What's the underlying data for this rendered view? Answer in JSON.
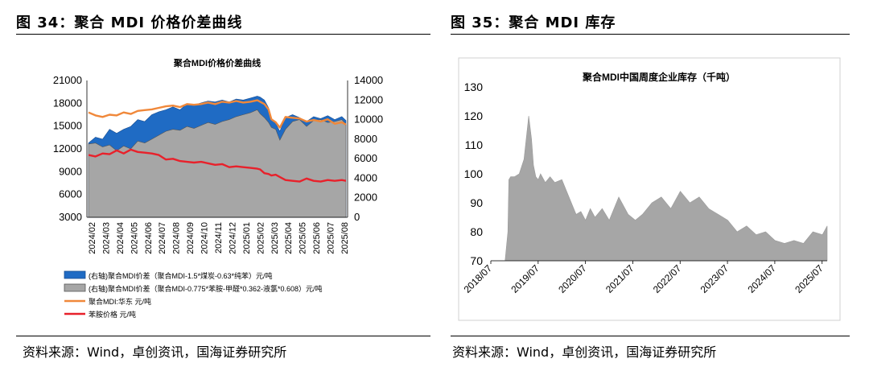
{
  "figures": {
    "left_title": "图 34：聚合 MDI 价格价差曲线",
    "right_title": "图 35：聚合 MDI 库存",
    "left_source": "资料来源：Wind，卓创资讯，国海证券研究所",
    "right_source": "资料来源：Wind，卓创资讯，国海证券研究所"
  },
  "chart_data": [
    {
      "type": "area",
      "title": "聚合MDI价格价差曲线",
      "x_tick_labels": [
        "2024/02",
        "2024/03",
        "2024/04",
        "2024/05",
        "2024/06",
        "2024/07",
        "2024/08",
        "2024/09",
        "2024/10",
        "2024/11",
        "2024/12",
        "2025/01",
        "2025/02",
        "2025/03",
        "2025/04",
        "2025/05",
        "2025/06",
        "2025/07",
        "2025/08"
      ],
      "yleft_ticks": [
        "21000",
        "18000",
        "15000",
        "12000",
        "9000",
        "6000",
        "3000"
      ],
      "yright_ticks": [
        "14000",
        "12000",
        "10000",
        "8000",
        "6000",
        "4000",
        "2000",
        "0"
      ],
      "ylim_left": [
        3000,
        21000
      ],
      "ylim_right": [
        0,
        14000
      ],
      "x": [
        0,
        0.5,
        1,
        1.5,
        2,
        2.5,
        3,
        3.5,
        4,
        4.5,
        5,
        5.5,
        6,
        6.5,
        7,
        7.5,
        8,
        8.5,
        9,
        9.5,
        10,
        10.5,
        11,
        11.5,
        12,
        12.2,
        12.5,
        12.8,
        13,
        13.3,
        13.6,
        14,
        14.5,
        15,
        15.5,
        16,
        16.5,
        17,
        17.5,
        18,
        18.3
      ],
      "series": [
        {
          "name": "(右轴)聚合MDI价差（聚合MDI-1.5*煤炭-0.63*纯苯）元/吨",
          "axis": "right",
          "color": "#1f6bc4",
          "values": [
            7600,
            8200,
            8000,
            9000,
            8600,
            9000,
            9300,
            10000,
            9800,
            10500,
            10800,
            11000,
            11300,
            11000,
            11600,
            11500,
            11700,
            11900,
            11800,
            12000,
            11800,
            12100,
            12000,
            12200,
            12400,
            12300,
            12000,
            11200,
            10000,
            9600,
            8800,
            10200,
            10500,
            10200,
            9800,
            10300,
            10100,
            10400,
            10000,
            10300,
            9900
          ]
        },
        {
          "name": "(右轴)聚合MDI价差（聚合MDI-0.775*苯胺-甲醛*0.362-液氯*0.608）元/吨",
          "axis": "right",
          "color": "#a6a6a6",
          "values": [
            7500,
            7600,
            7200,
            7400,
            6800,
            7300,
            7000,
            7800,
            7600,
            8000,
            8400,
            8800,
            9000,
            8900,
            9300,
            9100,
            9400,
            9700,
            9500,
            9800,
            10000,
            10300,
            10500,
            10700,
            11000,
            10600,
            10200,
            9700,
            9200,
            9000,
            7900,
            9000,
            9800,
            10000,
            9300,
            9900,
            10000,
            9700,
            9800,
            10000,
            9500
          ]
        },
        {
          "name": "聚合MDI:华东 元/吨",
          "axis": "left",
          "color": "#f0883a",
          "values": [
            16800,
            16400,
            16200,
            16500,
            16400,
            16800,
            16600,
            17000,
            17100,
            17200,
            17400,
            17600,
            17700,
            17500,
            17900,
            17800,
            17900,
            18100,
            17900,
            18200,
            18100,
            18300,
            18100,
            18200,
            18400,
            18200,
            17900,
            17200,
            15900,
            15500,
            14800,
            16200,
            16100,
            16000,
            15600,
            15800,
            15600,
            15900,
            15300,
            15500,
            15200
          ]
        },
        {
          "name": "苯胺价格 元/吨",
          "axis": "left",
          "color": "#e8212b",
          "values": [
            11200,
            11000,
            11400,
            11300,
            11800,
            11400,
            11900,
            11600,
            11500,
            11400,
            11200,
            10600,
            10700,
            10400,
            10300,
            10200,
            10300,
            10100,
            9900,
            10000,
            9600,
            9700,
            9600,
            9500,
            9400,
            9300,
            8800,
            8700,
            8500,
            8600,
            8300,
            7900,
            7800,
            7700,
            8100,
            7800,
            7700,
            7900,
            7800,
            7900,
            7800
          ]
        }
      ],
      "legend_placement": "bottom"
    },
    {
      "type": "area",
      "title": "聚合MDI中国周度企业库存（千吨）",
      "x_tick_labels": [
        "2018/07",
        "2019/07",
        "2020/07",
        "2021/07",
        "2022/07",
        "2023/07",
        "2024/07",
        "2025/07"
      ],
      "y_tick_labels": [
        "130",
        "120",
        "110",
        "100",
        "90",
        "80",
        "70"
      ],
      "ylim": [
        70,
        130
      ],
      "color": "#a6a6a6",
      "x": [
        0,
        0.3,
        0.36,
        0.38,
        0.42,
        0.5,
        0.6,
        0.7,
        0.8,
        0.86,
        0.9,
        0.95,
        1.0,
        1.05,
        1.15,
        1.25,
        1.35,
        1.5,
        1.6,
        1.7,
        1.8,
        1.9,
        2.0,
        2.1,
        2.2,
        2.35,
        2.5,
        2.7,
        2.9,
        3.05,
        3.2,
        3.4,
        3.6,
        3.8,
        4.0,
        4.2,
        4.4,
        4.6,
        4.8,
        5.0,
        5.2,
        5.4,
        5.6,
        5.8,
        6.0,
        6.2,
        6.4,
        6.6,
        6.8,
        7.0,
        7.1
      ],
      "values": [
        70,
        70,
        80,
        98,
        99,
        99,
        100,
        105,
        120,
        112,
        103,
        99,
        98,
        100,
        97,
        99,
        97,
        98,
        94,
        90,
        86,
        87,
        84,
        88,
        85,
        88,
        84,
        92,
        86,
        84,
        86,
        90,
        92,
        88,
        94,
        90,
        92,
        88,
        86,
        84,
        80,
        82,
        79,
        80,
        77,
        76,
        77,
        76,
        80,
        79,
        82
      ],
      "legend_placement": "none"
    }
  ]
}
